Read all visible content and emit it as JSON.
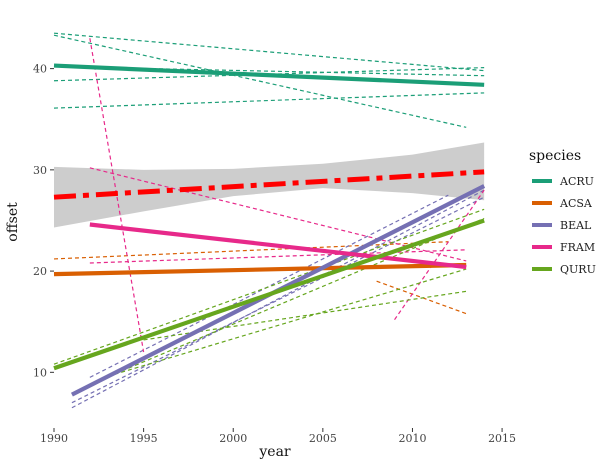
{
  "chart_data": {
    "type": "line",
    "xlabel": "year",
    "ylabel": "offset",
    "xlim": [
      1990,
      2016
    ],
    "ylim": [
      4.5,
      45
    ],
    "xticks": [
      1990,
      1995,
      2000,
      2005,
      2010,
      2015
    ],
    "yticks": [
      10,
      20,
      30,
      40
    ],
    "grid": false,
    "legend": {
      "title": "species",
      "position": "right",
      "entries": [
        {
          "name": "ACRU",
          "color": "#1B9E77"
        },
        {
          "name": "ACSA",
          "color": "#D95F02"
        },
        {
          "name": "BEAL",
          "color": "#7570B3"
        },
        {
          "name": "FRAM",
          "color": "#E7298A"
        },
        {
          "name": "QURU",
          "color": "#66A61E"
        }
      ]
    },
    "series": [
      {
        "name": "ACRU",
        "color": "#1B9E77",
        "x": [
          1990,
          2014
        ],
        "values": [
          40.3,
          38.4
        ]
      },
      {
        "name": "ACSA",
        "color": "#D95F02",
        "x": [
          1990,
          2013
        ],
        "values": [
          19.7,
          20.6
        ]
      },
      {
        "name": "BEAL",
        "color": "#7570B3",
        "x": [
          1991,
          2014
        ],
        "values": [
          7.8,
          28.4
        ]
      },
      {
        "name": "FRAM",
        "color": "#E7298A",
        "x": [
          1992,
          2013
        ],
        "values": [
          24.6,
          20.4
        ]
      },
      {
        "name": "QURU",
        "color": "#66A61E",
        "x": [
          1990,
          2014
        ],
        "values": [
          10.4,
          25.0
        ]
      }
    ],
    "overall_trend": {
      "color": "#FF0000",
      "x": [
        1990,
        2014
      ],
      "values": [
        27.3,
        29.8
      ],
      "ci_band": {
        "x": [
          1990,
          1995,
          2000,
          2005,
          2010,
          2014
        ],
        "upper": [
          30.3,
          30.0,
          30.1,
          30.6,
          31.5,
          32.7
        ],
        "lower": [
          24.3,
          25.9,
          27.4,
          28.2,
          27.7,
          27.0
        ]
      }
    },
    "individual_lines": [
      {
        "species": "ACRU",
        "x": [
          1990,
          2014
        ],
        "values": [
          43.5,
          39.8
        ]
      },
      {
        "species": "ACRU",
        "x": [
          1990,
          2013
        ],
        "values": [
          43.3,
          34.2
        ]
      },
      {
        "species": "ACRU",
        "x": [
          1990,
          2014
        ],
        "values": [
          40.2,
          39.3
        ]
      },
      {
        "species": "ACRU",
        "x": [
          1990,
          2014
        ],
        "values": [
          38.8,
          40.1
        ]
      },
      {
        "species": "ACRU",
        "x": [
          1990,
          2014
        ],
        "values": [
          36.1,
          37.6
        ]
      },
      {
        "species": "ACSA",
        "x": [
          1990,
          2012
        ],
        "values": [
          21.2,
          22.9
        ]
      },
      {
        "species": "ACSA",
        "x": [
          2008,
          2013
        ],
        "values": [
          19.0,
          15.8
        ]
      },
      {
        "species": "BEAL",
        "x": [
          1991,
          2014
        ],
        "values": [
          6.5,
          28.0
        ]
      },
      {
        "species": "BEAL",
        "x": [
          1991,
          2014
        ],
        "values": [
          7.0,
          27.3
        ]
      },
      {
        "species": "BEAL",
        "x": [
          1992,
          2012
        ],
        "values": [
          9.5,
          27.5
        ]
      },
      {
        "species": "FRAM",
        "x": [
          1992,
          1995
        ],
        "values": [
          43.0,
          12.0
        ]
      },
      {
        "species": "FRAM",
        "x": [
          1992,
          2013
        ],
        "values": [
          30.2,
          21.0
        ]
      },
      {
        "species": "FRAM",
        "x": [
          1992,
          2013
        ],
        "values": [
          20.8,
          22.1
        ]
      },
      {
        "species": "FRAM",
        "x": [
          2009,
          2014
        ],
        "values": [
          15.2,
          28.0
        ]
      },
      {
        "species": "QURU",
        "x": [
          1990,
          2014
        ],
        "values": [
          10.8,
          26.1
        ]
      },
      {
        "species": "QURU",
        "x": [
          1992,
          2014
        ],
        "values": [
          8.8,
          25.2
        ]
      },
      {
        "species": "QURU",
        "x": [
          1993,
          2013
        ],
        "values": [
          9.6,
          20.2
        ]
      },
      {
        "species": "QURU",
        "x": [
          1995,
          2013
        ],
        "values": [
          13.2,
          18.0
        ]
      }
    ]
  }
}
